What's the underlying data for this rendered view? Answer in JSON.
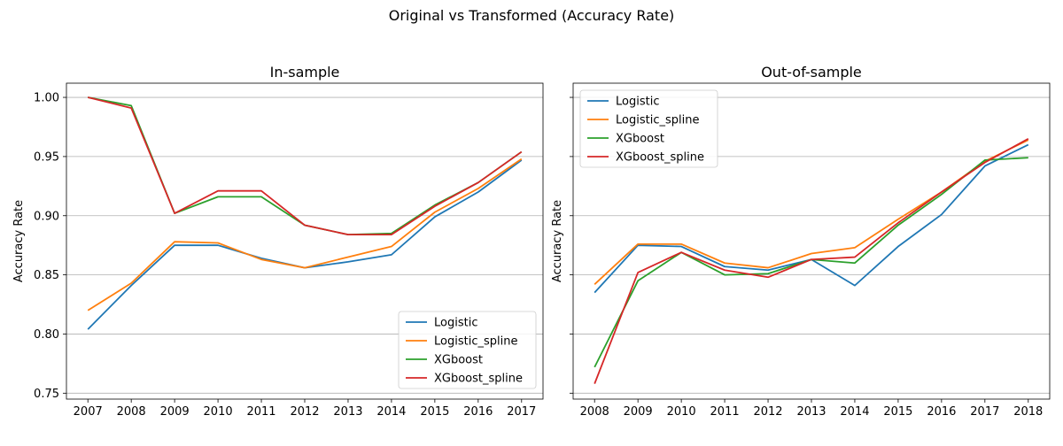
{
  "figure": {
    "suptitle": "Original vs Transformed (Accuracy Rate)"
  },
  "colors": {
    "Logistic": "#1f77b4",
    "Logistic_spline": "#ff7f0e",
    "XGboost": "#2ca02c",
    "XGboost_spline": "#d62728",
    "grid": "#b0b0b0"
  },
  "chart_data": [
    {
      "type": "line",
      "title": "In-sample",
      "xlabel": "",
      "ylabel": "Accuracy Rate",
      "x": [
        2007,
        2008,
        2009,
        2010,
        2011,
        2012,
        2013,
        2014,
        2015,
        2016,
        2017
      ],
      "ylim": [
        0.745,
        1.012
      ],
      "yticks": [
        0.75,
        0.8,
        0.85,
        0.9,
        0.95,
        1.0
      ],
      "ytick_labels": [
        "0.75",
        "0.80",
        "0.85",
        "0.90",
        "0.95",
        "1.00"
      ],
      "show_ytick_labels": true,
      "grid": "y",
      "legend": "lower right",
      "series": [
        {
          "name": "Logistic",
          "values": [
            0.804,
            0.841,
            0.875,
            0.875,
            0.864,
            0.856,
            0.861,
            0.867,
            0.899,
            0.92,
            0.947
          ]
        },
        {
          "name": "Logistic_spline",
          "values": [
            0.82,
            0.843,
            0.878,
            0.877,
            0.863,
            0.856,
            0.865,
            0.874,
            0.903,
            0.923,
            0.948
          ]
        },
        {
          "name": "XGboost",
          "values": [
            1.0,
            0.993,
            0.902,
            0.916,
            0.916,
            0.892,
            0.884,
            0.885,
            0.909,
            0.928,
            0.954
          ]
        },
        {
          "name": "XGboost_spline",
          "values": [
            1.0,
            0.991,
            0.902,
            0.921,
            0.921,
            0.892,
            0.884,
            0.884,
            0.908,
            0.928,
            0.954
          ]
        }
      ]
    },
    {
      "type": "line",
      "title": "Out-of-sample",
      "xlabel": "",
      "ylabel": "Accuracy Rate",
      "x": [
        2008,
        2009,
        2010,
        2011,
        2012,
        2013,
        2014,
        2015,
        2016,
        2017,
        2018
      ],
      "ylim": [
        0.745,
        1.012
      ],
      "yticks": [
        0.75,
        0.8,
        0.85,
        0.9,
        0.95,
        1.0
      ],
      "ytick_labels": [
        "0.75",
        "0.80",
        "0.85",
        "0.90",
        "0.95",
        "1.00"
      ],
      "show_ytick_labels": false,
      "grid": "y",
      "legend": "upper left",
      "series": [
        {
          "name": "Logistic",
          "values": [
            0.835,
            0.875,
            0.874,
            0.857,
            0.854,
            0.863,
            0.841,
            0.874,
            0.901,
            0.942,
            0.96
          ]
        },
        {
          "name": "Logistic_spline",
          "values": [
            0.842,
            0.876,
            0.876,
            0.86,
            0.856,
            0.868,
            0.873,
            0.897,
            0.92,
            0.946,
            0.964
          ]
        },
        {
          "name": "XGboost",
          "values": [
            0.772,
            0.845,
            0.869,
            0.85,
            0.851,
            0.863,
            0.86,
            0.892,
            0.918,
            0.947,
            0.949
          ]
        },
        {
          "name": "XGboost_spline",
          "values": [
            0.758,
            0.852,
            0.869,
            0.854,
            0.848,
            0.863,
            0.865,
            0.894,
            0.92,
            0.945,
            0.965
          ]
        }
      ]
    }
  ]
}
